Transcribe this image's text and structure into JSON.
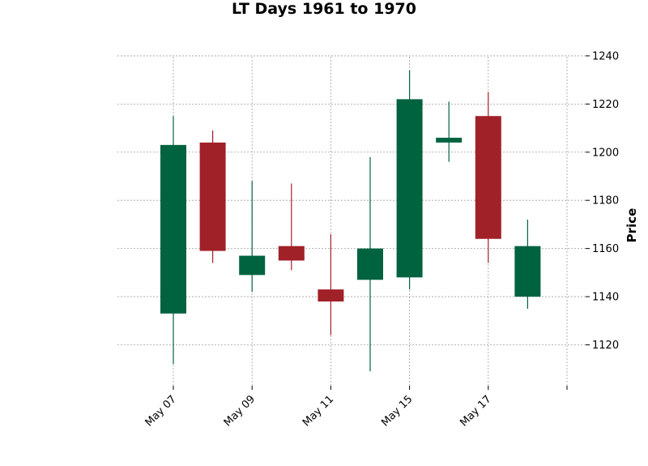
{
  "chart_data": {
    "type": "candlestick",
    "title": "LT Days 1961 to 1970",
    "ylabel": "Price",
    "xlabel": "",
    "ylim": [
      1103,
      1243
    ],
    "yticks": [
      1120,
      1140,
      1160,
      1180,
      1200,
      1220,
      1240
    ],
    "x_tick_labels": [
      "May 07",
      "May 09",
      "May 11",
      "May 15",
      "May 17",
      ""
    ],
    "x_tick_positions": [
      0,
      2,
      4,
      6,
      8,
      10
    ],
    "grid": true,
    "y_axis_side": "right",
    "colors": {
      "up": "#006340",
      "down": "#a02128",
      "grid": "#a0a0a0"
    },
    "candles": [
      {
        "index": 0,
        "open": 1133,
        "high": 1215,
        "low": 1112,
        "close": 1203
      },
      {
        "index": 1,
        "open": 1204,
        "high": 1209,
        "low": 1154,
        "close": 1159
      },
      {
        "index": 2,
        "open": 1149,
        "high": 1188,
        "low": 1142,
        "close": 1157
      },
      {
        "index": 3,
        "open": 1161,
        "high": 1187,
        "low": 1151,
        "close": 1155
      },
      {
        "index": 4,
        "open": 1143,
        "high": 1166,
        "low": 1124,
        "close": 1138
      },
      {
        "index": 5,
        "open": 1147,
        "high": 1198,
        "low": 1109,
        "close": 1160
      },
      {
        "index": 6,
        "open": 1148,
        "high": 1234,
        "low": 1143,
        "close": 1222
      },
      {
        "index": 7,
        "open": 1204,
        "high": 1221,
        "low": 1196,
        "close": 1206
      },
      {
        "index": 8,
        "open": 1215,
        "high": 1225,
        "low": 1154,
        "close": 1164
      },
      {
        "index": 9,
        "open": 1140,
        "high": 1172,
        "low": 1135,
        "close": 1161
      }
    ]
  }
}
